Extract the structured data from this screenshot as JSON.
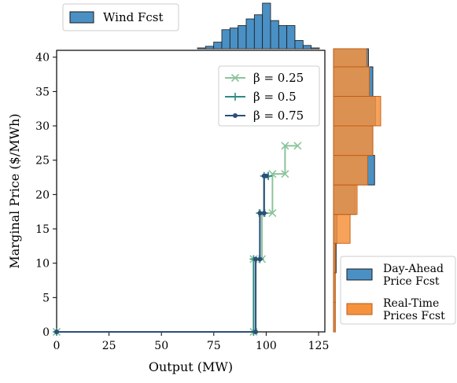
{
  "chart_data": [
    {
      "type": "line",
      "xlabel": "Output (MW)",
      "ylabel": "Marginal Price ($/MWh)",
      "xlim": [
        0,
        128
      ],
      "ylim": [
        0,
        41
      ],
      "xticks": [
        0,
        25,
        50,
        75,
        100,
        125
      ],
      "yticks": [
        0,
        5,
        10,
        15,
        20,
        25,
        30,
        35,
        40
      ],
      "legend_position": "top-right",
      "grid": false,
      "series": [
        {
          "name": "β = 0.25",
          "color": "#8cc49b",
          "marker": "x",
          "x": [
            0,
            94,
            94,
            98,
            98,
            103,
            103,
            109,
            109,
            115
          ],
          "y": [
            0,
            0,
            10.6,
            10.6,
            17.3,
            17.3,
            23.0,
            23.0,
            27.1,
            27.1
          ]
        },
        {
          "name": "β = 0.5",
          "color": "#2f8a83",
          "marker": "+",
          "x": [
            0,
            94,
            94,
            97,
            97,
            99,
            99,
            101,
            101
          ],
          "y": [
            0,
            0,
            10.6,
            10.6,
            17.3,
            17.3,
            22.7,
            22.7,
            22.7
          ]
        },
        {
          "name": "β = 0.75",
          "color": "#2b4e7a",
          "marker": "o",
          "x": [
            0,
            95,
            95,
            97,
            97,
            99,
            99,
            100
          ],
          "y": [
            0,
            0,
            10.6,
            10.6,
            17.3,
            17.3,
            22.7,
            22.7
          ]
        }
      ]
    },
    {
      "type": "bar",
      "orientation": "vertical",
      "legend": "Wind Fcst",
      "color": "#4a90c4",
      "bins": [
        [
          105,
          109
        ],
        [
          109,
          113
        ],
        [
          113,
          117
        ],
        [
          117,
          121
        ],
        [
          121,
          125
        ],
        [
          125,
          129
        ],
        [
          129,
          133
        ],
        [
          133,
          137
        ],
        [
          137,
          141
        ],
        [
          141,
          145
        ],
        [
          145,
          149
        ],
        [
          149,
          153
        ],
        [
          153,
          157
        ],
        [
          157,
          161
        ],
        [
          161,
          165
        ]
      ],
      "values": [
        1,
        3,
        8,
        23,
        25,
        28,
        36,
        41,
        55,
        34,
        28,
        28,
        10,
        4,
        1
      ]
    },
    {
      "type": "bar",
      "orientation": "horizontal",
      "series": [
        {
          "name": "Day-Ahead\nPrice Fcst",
          "color": "#4a90c4",
          "bins": [
            [
              0,
              4.3
            ],
            [
              4.3,
              8.6
            ],
            [
              8.6,
              12.9
            ],
            [
              12.9,
              17.1
            ],
            [
              17.1,
              21.4
            ],
            [
              21.4,
              25.7
            ],
            [
              25.7,
              30.0
            ],
            [
              30.0,
              34.3
            ],
            [
              34.3,
              38.6
            ],
            [
              38.6,
              42.9
            ]
          ],
          "values": [
            2,
            2,
            3,
            4,
            25,
            47,
            45,
            48,
            45,
            40
          ]
        },
        {
          "name": "Real-Time\nPrices Fcst",
          "color": "#f5923e",
          "bins": [
            [
              0,
              4.3
            ],
            [
              4.3,
              8.6
            ],
            [
              8.6,
              12.9
            ],
            [
              12.9,
              17.1
            ],
            [
              17.1,
              21.4
            ],
            [
              21.4,
              25.7
            ],
            [
              25.7,
              30.0
            ],
            [
              30.0,
              34.3
            ],
            [
              34.3,
              38.6
            ],
            [
              38.6,
              42.9
            ]
          ],
          "values": [
            2,
            2,
            2,
            19,
            27,
            39,
            45,
            54,
            41,
            38
          ]
        }
      ]
    }
  ]
}
